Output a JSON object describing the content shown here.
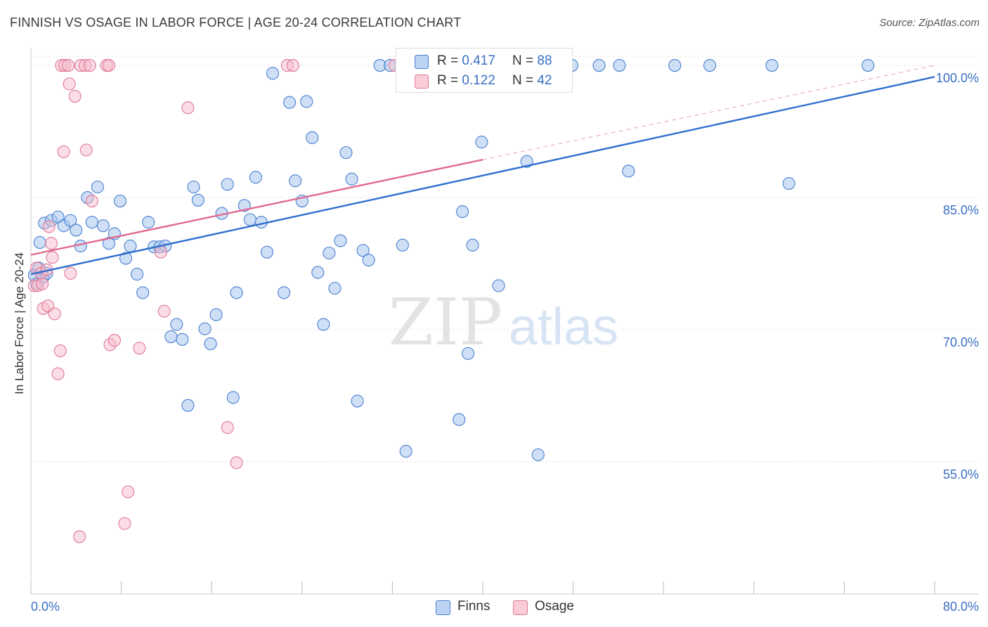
{
  "title": "FINNISH VS OSAGE IN LABOR FORCE | AGE 20-24 CORRELATION CHART",
  "source": "Source: ZipAtlas.com",
  "watermark": {
    "zip": "ZIP",
    "atlas": "atlas"
  },
  "legend": {
    "r_label": "R =",
    "n_label": "N =",
    "rows": [
      {
        "r": "0.417",
        "n": "88",
        "color": "#a8c6ee"
      },
      {
        "r": "0.122",
        "n": "42",
        "color": "#f5bccb"
      }
    ]
  },
  "chart_data": {
    "type": "scatter",
    "title": "FINNISH VS OSAGE IN LABOR FORCE | AGE 20-24 CORRELATION CHART",
    "xlabel": "",
    "ylabel": "In Labor Force | Age 20-24",
    "xlim": [
      0,
      80
    ],
    "ylim": [
      40,
      102
    ],
    "x_tick_labels": [
      "0.0%",
      "80.0%"
    ],
    "y_ticks": [
      55,
      70,
      85,
      100
    ],
    "y_tick_labels": [
      "55.0%",
      "70.0%",
      "85.0%",
      "100.0%"
    ],
    "grid": true,
    "legend_position": "top-center",
    "colors": {
      "finns": "#4a7fcf",
      "osage": "#e07898",
      "finns_fill": "#a8c6ee",
      "osage_fill": "#f5bccb"
    },
    "series": [
      {
        "name": "Finns",
        "r": 0.417,
        "n": 88,
        "trend": {
          "x": [
            0,
            80
          ],
          "y": [
            76.3,
            98.7
          ]
        },
        "points": [
          [
            0.3,
            76.2
          ],
          [
            0.5,
            75.2
          ],
          [
            0.8,
            79.9
          ],
          [
            1.1,
            76.0
          ],
          [
            1.2,
            82.1
          ],
          [
            1.8,
            82.4
          ],
          [
            2.4,
            82.8
          ],
          [
            2.9,
            81.8
          ],
          [
            3.5,
            82.4
          ],
          [
            4.0,
            81.3
          ],
          [
            4.4,
            79.5
          ],
          [
            5.0,
            85.0
          ],
          [
            5.4,
            82.2
          ],
          [
            5.9,
            86.2
          ],
          [
            6.4,
            81.8
          ],
          [
            6.9,
            79.8
          ],
          [
            7.4,
            80.9
          ],
          [
            7.9,
            84.6
          ],
          [
            8.4,
            78.1
          ],
          [
            8.8,
            79.5
          ],
          [
            9.4,
            76.3
          ],
          [
            9.9,
            74.2
          ],
          [
            10.4,
            82.2
          ],
          [
            10.9,
            79.4
          ],
          [
            11.4,
            79.4
          ],
          [
            11.9,
            79.5
          ],
          [
            12.4,
            69.2
          ],
          [
            12.9,
            70.6
          ],
          [
            13.4,
            68.9
          ],
          [
            13.9,
            61.4
          ],
          [
            14.4,
            86.2
          ],
          [
            14.8,
            84.7
          ],
          [
            15.4,
            70.1
          ],
          [
            15.9,
            68.4
          ],
          [
            16.4,
            71.7
          ],
          [
            16.9,
            83.2
          ],
          [
            17.4,
            86.5
          ],
          [
            17.9,
            62.3
          ],
          [
            18.2,
            74.2
          ],
          [
            18.9,
            84.1
          ],
          [
            19.4,
            82.5
          ],
          [
            19.9,
            87.3
          ],
          [
            20.4,
            82.2
          ],
          [
            20.9,
            78.8
          ],
          [
            21.4,
            99.1
          ],
          [
            22.4,
            74.2
          ],
          [
            22.9,
            95.8
          ],
          [
            23.4,
            86.9
          ],
          [
            24.0,
            84.6
          ],
          [
            24.4,
            95.9
          ],
          [
            24.9,
            91.8
          ],
          [
            25.4,
            76.5
          ],
          [
            25.9,
            70.6
          ],
          [
            26.4,
            78.7
          ],
          [
            26.9,
            74.7
          ],
          [
            27.4,
            80.1
          ],
          [
            27.9,
            90.1
          ],
          [
            28.4,
            87.1
          ],
          [
            28.9,
            61.9
          ],
          [
            29.4,
            79.0
          ],
          [
            29.9,
            77.9
          ],
          [
            30.9,
            100.0
          ],
          [
            31.8,
            100.0
          ],
          [
            32.9,
            79.6
          ],
          [
            33.2,
            56.2
          ],
          [
            35.4,
            100.0
          ],
          [
            37.4,
            100.0
          ],
          [
            37.9,
            59.8
          ],
          [
            38.2,
            83.4
          ],
          [
            38.7,
            67.3
          ],
          [
            39.1,
            79.6
          ],
          [
            39.9,
            91.3
          ],
          [
            41.4,
            75.0
          ],
          [
            42.9,
            100.0
          ],
          [
            43.9,
            89.1
          ],
          [
            44.9,
            55.8
          ],
          [
            45.9,
            100.0
          ],
          [
            47.9,
            100.0
          ],
          [
            50.3,
            100.0
          ],
          [
            52.1,
            100.0
          ],
          [
            52.9,
            88.0
          ],
          [
            57.0,
            100.0
          ],
          [
            60.1,
            100.0
          ],
          [
            65.6,
            100.0
          ],
          [
            67.1,
            86.6
          ],
          [
            74.1,
            100.0
          ],
          [
            0.7,
            77.0
          ],
          [
            1.4,
            76.4
          ]
        ]
      },
      {
        "name": "Osage",
        "r": 0.122,
        "n": 42,
        "trend": {
          "x": [
            0,
            40
          ],
          "y": [
            78.5,
            89.3
          ]
        },
        "dashed_extension": {
          "x": [
            40,
            80
          ],
          "y": [
            89.3,
            100.0
          ]
        },
        "points": [
          [
            0.3,
            75.0
          ],
          [
            0.5,
            77.0
          ],
          [
            0.6,
            75.0
          ],
          [
            0.9,
            76.4
          ],
          [
            1.0,
            75.2
          ],
          [
            1.1,
            72.4
          ],
          [
            1.4,
            76.8
          ],
          [
            1.5,
            72.7
          ],
          [
            1.6,
            81.7
          ],
          [
            1.8,
            79.8
          ],
          [
            1.9,
            78.2
          ],
          [
            2.1,
            71.8
          ],
          [
            2.4,
            65.0
          ],
          [
            2.6,
            67.6
          ],
          [
            2.7,
            100.0
          ],
          [
            2.9,
            90.2
          ],
          [
            3.0,
            100.0
          ],
          [
            3.3,
            100.0
          ],
          [
            3.4,
            97.9
          ],
          [
            3.5,
            76.4
          ],
          [
            3.9,
            96.5
          ],
          [
            4.3,
            46.5
          ],
          [
            4.4,
            100.0
          ],
          [
            4.8,
            100.0
          ],
          [
            4.9,
            90.4
          ],
          [
            5.2,
            100.0
          ],
          [
            5.4,
            84.6
          ],
          [
            6.7,
            100.0
          ],
          [
            6.9,
            100.0
          ],
          [
            7.0,
            68.3
          ],
          [
            7.4,
            68.8
          ],
          [
            8.3,
            48.0
          ],
          [
            8.6,
            51.6
          ],
          [
            9.6,
            67.9
          ],
          [
            11.5,
            78.8
          ],
          [
            11.8,
            72.1
          ],
          [
            13.9,
            95.2
          ],
          [
            17.4,
            58.9
          ],
          [
            18.2,
            54.9
          ],
          [
            22.7,
            100.0
          ],
          [
            23.2,
            100.0
          ],
          [
            32.2,
            100.0
          ]
        ]
      }
    ]
  },
  "bottom_legend": [
    {
      "label": "Finns"
    },
    {
      "label": "Osage"
    }
  ]
}
